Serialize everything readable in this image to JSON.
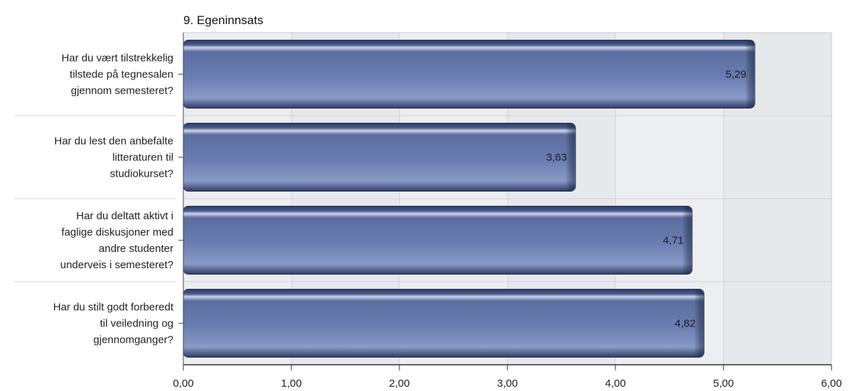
{
  "chart_data": {
    "type": "bar",
    "orientation": "horizontal",
    "title": "9. Egeninnsats",
    "xlabel": "",
    "ylabel": "",
    "xlim": [
      0,
      6
    ],
    "x_ticks": [
      0,
      1,
      2,
      3,
      4,
      5,
      6
    ],
    "x_tick_labels": [
      "0,00",
      "1,00",
      "2,00",
      "3,00",
      "4,00",
      "5,00",
      "6,00"
    ],
    "grid": true,
    "categories": [
      [
        "Har du vært tilstrekkelig",
        "tilstede på tegnesalen",
        "gjennom semesteret?"
      ],
      [
        "Har du lest den anbefalte",
        "litteraturen til",
        "studiokurset?"
      ],
      [
        "Har du deltatt aktivt i",
        "faglige diskusjoner med",
        "andre studenter",
        "underveis i semesteret?"
      ],
      [
        "Har du stilt godt forberedt",
        "til veiledning og",
        "gjennomganger?"
      ]
    ],
    "values": [
      5.29,
      3.63,
      4.71,
      4.82
    ],
    "value_labels": [
      "5,29",
      "3,63",
      "4,71",
      "4,82"
    ],
    "colors": {
      "bar_dark": "#33416e",
      "bar_mid": "#5a6c9e",
      "bar_light": "#8797c4",
      "bar_highlight": "#cdd6ee",
      "plot_bg": "#e6e8ec",
      "plot_bg_alt": "#eceef1",
      "grid": "#cfd2d7"
    }
  }
}
